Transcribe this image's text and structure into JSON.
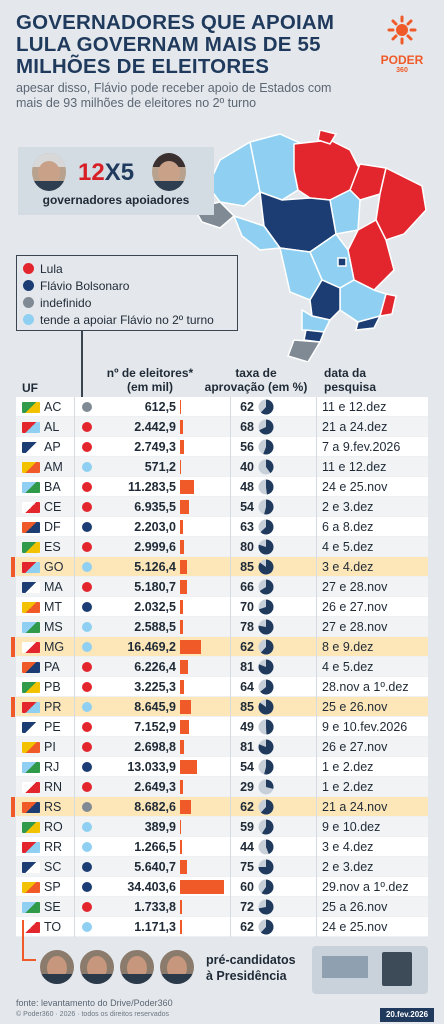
{
  "header": {
    "title_lines": [
      "GOVERNADORES QUE APOIAM",
      "LULA GOVERNAM MAIS DE 55",
      "MILHÕES DE ELEITORES"
    ],
    "subtitle_lines": [
      "apesar disso, Flávio pode receber apoio de Estados com",
      "mais de 93 milhões de eleitores no 2º turno"
    ]
  },
  "logo": {
    "name": "PODER",
    "number": "360"
  },
  "score": {
    "left": "12",
    "x": "X",
    "right": "5",
    "caption": "governadores apoiadores"
  },
  "legend": [
    {
      "label": "Lula",
      "color": "#e3262e"
    },
    {
      "label": "Flávio Bolsonaro",
      "color": "#1b3d73"
    },
    {
      "label": "indefinido",
      "color": "#808a94"
    },
    {
      "label": "tende a apoiar Flávio no 2º turno",
      "color": "#8fd0f2"
    }
  ],
  "columns": {
    "uf": "UF",
    "voters_1": "nº de eleitores*",
    "voters_2": "(em mil)",
    "approval_1": "taxa de",
    "approval_2": "aprovação (em %)",
    "date_1": "data da",
    "date_2": "pesquisa"
  },
  "chart_data": {
    "type": "table",
    "rows": [
      {
        "uf": "AC",
        "support": "indefinido",
        "voters": "612,5",
        "voters_num": 612.5,
        "approval": 62,
        "date": "11 e 12.dez"
      },
      {
        "uf": "AL",
        "support": "Lula",
        "voters": "2.442,9",
        "voters_num": 2442.9,
        "approval": 68,
        "date": "21 a 24.dez"
      },
      {
        "uf": "AP",
        "support": "Lula",
        "voters": "2.749,3",
        "voters_num": 2749.3,
        "approval": 56,
        "date": "7 a 9.fev.2026"
      },
      {
        "uf": "AM",
        "support": "tende a apoiar Flávio no 2º turno",
        "voters": "571,2",
        "voters_num": 571.2,
        "approval": 40,
        "date": "11 e 12.dez"
      },
      {
        "uf": "BA",
        "support": "Lula",
        "voters": "11.283,5",
        "voters_num": 11283.5,
        "approval": 48,
        "date": "24 e 25.nov"
      },
      {
        "uf": "CE",
        "support": "Lula",
        "voters": "6.935,5",
        "voters_num": 6935.5,
        "approval": 54,
        "date": "2 e 3.dez"
      },
      {
        "uf": "DF",
        "support": "Flávio Bolsonaro",
        "voters": "2.203,0",
        "voters_num": 2203.0,
        "approval": 63,
        "date": "6 a 8.dez"
      },
      {
        "uf": "ES",
        "support": "Lula",
        "voters": "2.999,6",
        "voters_num": 2999.6,
        "approval": 80,
        "date": "4 e 5.dez"
      },
      {
        "uf": "GO",
        "support": "tende a apoiar Flávio no 2º turno",
        "voters": "5.126,4",
        "voters_num": 5126.4,
        "approval": 85,
        "date": "3 e 4.dez",
        "highlight": true
      },
      {
        "uf": "MA",
        "support": "Lula",
        "voters": "5.180,7",
        "voters_num": 5180.7,
        "approval": 66,
        "date": "27 e 28.nov"
      },
      {
        "uf": "MT",
        "support": "Flávio Bolsonaro",
        "voters": "2.032,5",
        "voters_num": 2032.5,
        "approval": 70,
        "date": "26 e 27.nov"
      },
      {
        "uf": "MS",
        "support": "tende a apoiar Flávio no 2º turno",
        "voters": "2.588,5",
        "voters_num": 2588.5,
        "approval": 78,
        "date": "27 e 28.nov"
      },
      {
        "uf": "MG",
        "support": "tende a apoiar Flávio no 2º turno",
        "voters": "16.469,2",
        "voters_num": 16469.2,
        "approval": 62,
        "date": "8 e 9.dez",
        "highlight": true
      },
      {
        "uf": "PA",
        "support": "Lula",
        "voters": "6.226,4",
        "voters_num": 6226.4,
        "approval": 81,
        "date": "4 e 5.dez"
      },
      {
        "uf": "PB",
        "support": "Lula",
        "voters": "3.225,3",
        "voters_num": 3225.3,
        "approval": 64,
        "date": "28.nov a 1º.dez"
      },
      {
        "uf": "PR",
        "support": "tende a apoiar Flávio no 2º turno",
        "voters": "8.645,9",
        "voters_num": 8645.9,
        "approval": 85,
        "date": "25 e 26.nov",
        "highlight": true
      },
      {
        "uf": "PE",
        "support": "Lula",
        "voters": "7.152,9",
        "voters_num": 7152.9,
        "approval": 49,
        "date": "9 e 10.fev.2026"
      },
      {
        "uf": "PI",
        "support": "Lula",
        "voters": "2.698,8",
        "voters_num": 2698.8,
        "approval": 81,
        "date": "26 e 27.nov"
      },
      {
        "uf": "RJ",
        "support": "Flávio Bolsonaro",
        "voters": "13.033,9",
        "voters_num": 13033.9,
        "approval": 54,
        "date": "1 e 2.dez"
      },
      {
        "uf": "RN",
        "support": "Lula",
        "voters": "2.649,3",
        "voters_num": 2649.3,
        "approval": 29,
        "date": "1 e 2.dez"
      },
      {
        "uf": "RS",
        "support": "indefinido",
        "voters": "8.682,6",
        "voters_num": 8682.6,
        "approval": 62,
        "date": "21 a 24.nov",
        "highlight": true
      },
      {
        "uf": "RO",
        "support": "tende a apoiar Flávio no 2º turno",
        "voters": "389,9",
        "voters_num": 389.9,
        "approval": 59,
        "date": "9 e 10.dez"
      },
      {
        "uf": "RR",
        "support": "tende a apoiar Flávio no 2º turno",
        "voters": "1.266,5",
        "voters_num": 1266.5,
        "approval": 44,
        "date": "3 e 4.dez"
      },
      {
        "uf": "SC",
        "support": "Flávio Bolsonaro",
        "voters": "5.640,7",
        "voters_num": 5640.7,
        "approval": 75,
        "date": "2 e 3.dez"
      },
      {
        "uf": "SP",
        "support": "Flávio Bolsonaro",
        "voters": "34.403,6",
        "voters_num": 34403.6,
        "approval": 60,
        "date": "29.nov a 1º.dez"
      },
      {
        "uf": "SE",
        "support": "Lula",
        "voters": "1.733,8",
        "voters_num": 1733.8,
        "approval": 72,
        "date": "25 a 26.nov"
      },
      {
        "uf": "TO",
        "support": "tende a apoiar Flávio no 2º turno",
        "voters": "1.171,3",
        "voters_num": 1171.3,
        "approval": 62,
        "date": "24 e 25.nov"
      }
    ],
    "bar_color": "#f05a28",
    "pie_color": "#1f3a5c"
  },
  "footer": {
    "candidates_label_1": "pré-candidatos",
    "candidates_label_2": "à Presidência",
    "source": "fonte: levantamento do Drive/Poder360",
    "copyright": "© Poder360 · 2026 · todos os direitos reservados",
    "date": "20.fev.2026"
  }
}
